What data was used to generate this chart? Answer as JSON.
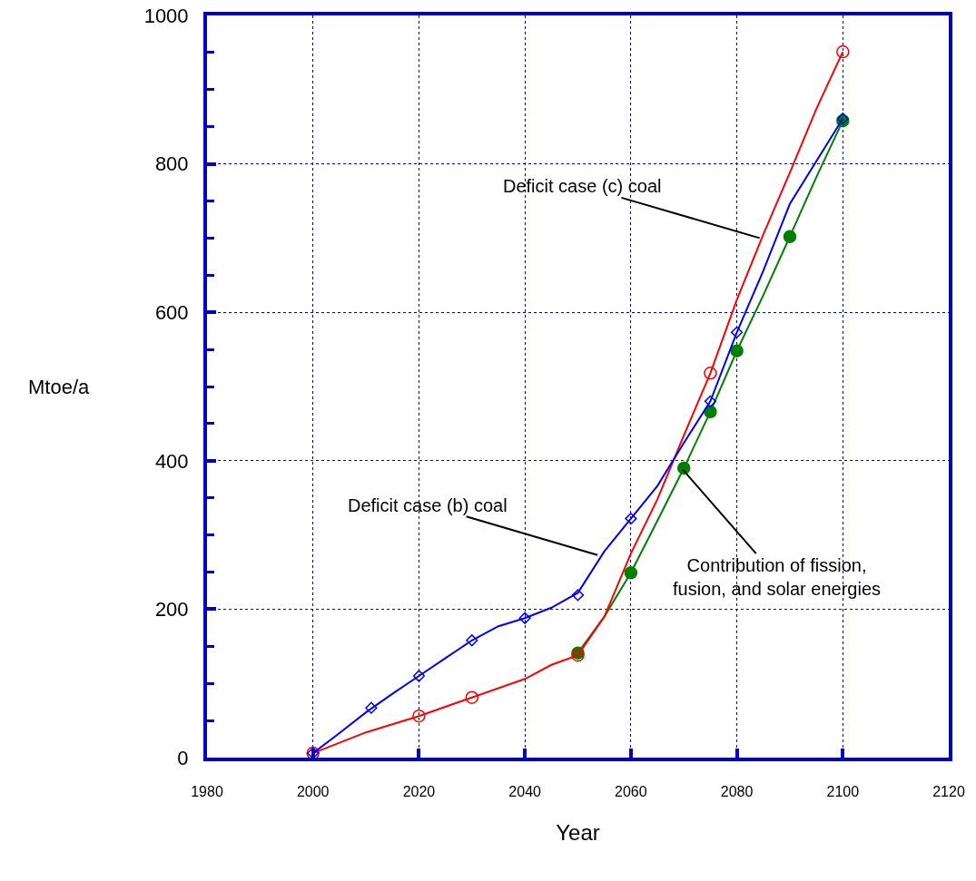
{
  "chart_data": {
    "type": "line",
    "xlabel": "Year",
    "ylabel": "Mtoe/a",
    "xlim": [
      1980,
      2120
    ],
    "xticks": [
      1980,
      2000,
      2020,
      2040,
      2060,
      2080,
      2100,
      2120
    ],
    "ylim": [
      0,
      1000
    ],
    "yticks": [
      0,
      200,
      400,
      600,
      800,
      1000
    ],
    "grid": true,
    "series": [
      {
        "color": "#0000ff",
        "marker": "none",
        "x": [
          2000,
          2005,
          2010,
          2015,
          2020,
          2025,
          2030,
          2035,
          2040,
          2045,
          2050,
          2055,
          2060,
          2065,
          2070,
          2075,
          2080,
          2085,
          2090,
          2100
        ],
        "values": [
          6,
          33,
          61,
          86,
          110,
          134,
          158,
          177,
          188,
          202,
          222,
          278,
          322,
          366,
          424,
          480,
          573,
          656,
          746,
          861
        ]
      },
      {
        "type": "scatter",
        "color": "#0000ff",
        "marker": "diamond",
        "x": [
          2000,
          2011,
          2020,
          2030,
          2040,
          2050,
          2060,
          2075,
          2080,
          2100
        ],
        "values": [
          6,
          67,
          110,
          158,
          188,
          219,
          322,
          480,
          573,
          861
        ]
      },
      {
        "color": "#ff0000",
        "marker": "none",
        "x": [
          2000,
          2010,
          2020,
          2030,
          2040,
          2045,
          2050,
          2055,
          2060,
          2065,
          2070,
          2075,
          2080,
          2085,
          2090,
          2095,
          2100
        ],
        "values": [
          6,
          34,
          56,
          81,
          106,
          125,
          138,
          190,
          275,
          348,
          434,
          518,
          617,
          705,
          788,
          874,
          951
        ]
      },
      {
        "type": "scatter",
        "color": "#ff0000",
        "marker": "circle-open",
        "x": [
          2000,
          2020,
          2030,
          2050,
          2075,
          2100
        ],
        "values": [
          6,
          56,
          81,
          138,
          518,
          951
        ]
      },
      {
        "color": "#008000",
        "marker": "none",
        "x": [
          2050,
          2055,
          2060,
          2065,
          2070,
          2075,
          2080,
          2085,
          2090,
          2095,
          2100
        ],
        "values": [
          141,
          190,
          249,
          319,
          390,
          466,
          548,
          623,
          702,
          782,
          858
        ]
      },
      {
        "type": "scatter",
        "color": "#008000",
        "marker": "circle",
        "x": [
          2050,
          2060,
          2070,
          2075,
          2080,
          2090,
          2100
        ],
        "values": [
          141,
          249,
          390,
          466,
          548,
          702,
          858
        ]
      }
    ],
    "annotations": [
      {
        "text": "Deficit case (b) coal",
        "x": 2053.7,
        "y": 273
      },
      {
        "text": "Deficit case (c) coal",
        "x": 2084.3,
        "y": 700
      },
      {
        "text": "Contribution of fission,\nfusion, and solar energies",
        "x": 2069.8,
        "y": 388
      }
    ]
  }
}
